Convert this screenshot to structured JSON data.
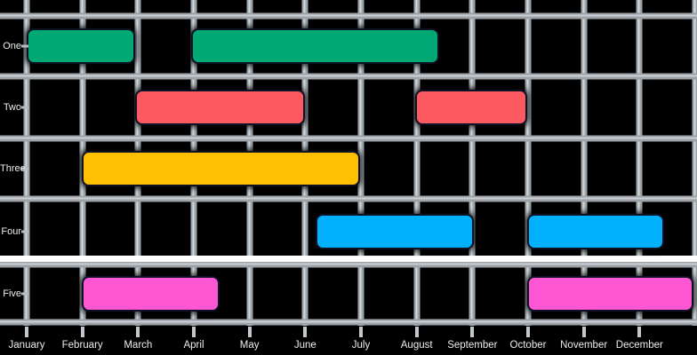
{
  "chart_data": {
    "type": "bar",
    "subtype": "gantt",
    "title": "",
    "xlabel": "",
    "ylabel": "",
    "x_axis_unit": "month-of-year",
    "xlim_months": [
      0,
      12
    ],
    "x_tick_labels": [
      "January",
      "February",
      "March",
      "April",
      "May",
      "June",
      "July",
      "August",
      "September",
      "October",
      "November",
      "December"
    ],
    "categories": [
      "One",
      "Two",
      "Three",
      "Four",
      "Five"
    ],
    "grid": true,
    "legend": false,
    "colors": {
      "background": "#000000",
      "grid": "#9da2a7",
      "grid_highlight": "#ccd9de",
      "divider_line": "#ffffff",
      "axis_text": "#ebedef",
      "bar_border": "#0e1024"
    },
    "divider": {
      "description": "white horizontal line between rows Four and Five",
      "color": "#ffffff",
      "after_row": "Four"
    },
    "series": [
      {
        "category": "One",
        "color": "#00a873",
        "spans": [
          {
            "start_month": 0.0,
            "end_month": 1.95
          },
          {
            "start_month": 2.95,
            "end_month": 7.4
          }
        ]
      },
      {
        "category": "Two",
        "color": "#fc5a60",
        "spans": [
          {
            "start_month": 1.95,
            "end_month": 5.0
          },
          {
            "start_month": 6.97,
            "end_month": 8.98
          }
        ]
      },
      {
        "category": "Three",
        "color": "#ffbf02",
        "spans": [
          {
            "start_month": 0.99,
            "end_month": 5.99
          }
        ]
      },
      {
        "category": "Four",
        "color": "#02b1fd",
        "spans": [
          {
            "start_month": 5.19,
            "end_month": 8.02
          },
          {
            "start_month": 8.98,
            "end_month": 11.44
          }
        ]
      },
      {
        "category": "Five",
        "color": "#fd57d3",
        "spans": [
          {
            "start_month": 0.99,
            "end_month": 3.46
          },
          {
            "start_month": 8.98,
            "end_month": 11.97
          }
        ]
      }
    ]
  }
}
